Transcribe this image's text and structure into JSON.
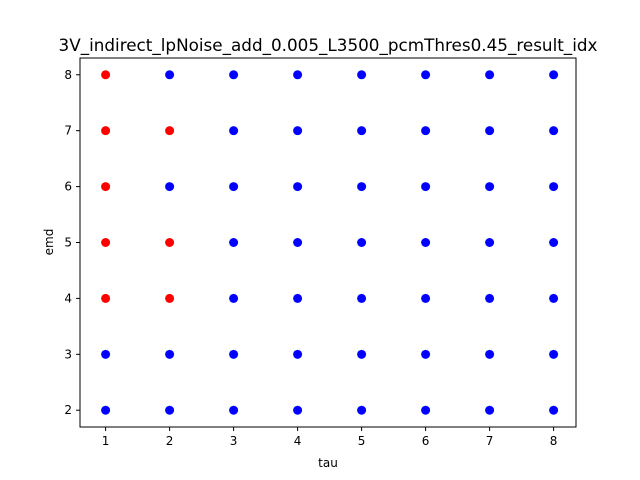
{
  "chart_data": {
    "type": "scatter",
    "title": "3V_indirect_lpNoise_add_0.005_L3500_pcmThres0.45_result_idx",
    "xlabel": "tau",
    "ylabel": "emd",
    "xlim": [
      0.6,
      8.35
    ],
    "ylim": [
      1.7,
      8.3
    ],
    "xticks": [
      1,
      2,
      3,
      4,
      5,
      6,
      7,
      8
    ],
    "yticks": [
      2,
      3,
      4,
      5,
      6,
      7,
      8
    ],
    "grid": false,
    "colors": {
      "red": "#ff0000",
      "blue": "#0000ff"
    },
    "series": [
      {
        "color": "red",
        "points": [
          [
            1,
            4
          ],
          [
            1,
            5
          ],
          [
            1,
            6
          ],
          [
            1,
            7
          ],
          [
            1,
            8
          ],
          [
            2,
            4
          ],
          [
            2,
            5
          ],
          [
            2,
            7
          ]
        ]
      },
      {
        "color": "blue",
        "points": [
          [
            1,
            2
          ],
          [
            1,
            3
          ],
          [
            2,
            2
          ],
          [
            2,
            3
          ],
          [
            2,
            6
          ],
          [
            2,
            8
          ],
          [
            3,
            2
          ],
          [
            3,
            3
          ],
          [
            3,
            4
          ],
          [
            3,
            5
          ],
          [
            3,
            6
          ],
          [
            3,
            7
          ],
          [
            3,
            8
          ],
          [
            4,
            2
          ],
          [
            4,
            3
          ],
          [
            4,
            4
          ],
          [
            4,
            5
          ],
          [
            4,
            6
          ],
          [
            4,
            7
          ],
          [
            4,
            8
          ],
          [
            5,
            2
          ],
          [
            5,
            3
          ],
          [
            5,
            4
          ],
          [
            5,
            5
          ],
          [
            5,
            6
          ],
          [
            5,
            7
          ],
          [
            5,
            8
          ],
          [
            6,
            2
          ],
          [
            6,
            3
          ],
          [
            6,
            4
          ],
          [
            6,
            5
          ],
          [
            6,
            6
          ],
          [
            6,
            7
          ],
          [
            6,
            8
          ],
          [
            7,
            2
          ],
          [
            7,
            3
          ],
          [
            7,
            4
          ],
          [
            7,
            5
          ],
          [
            7,
            6
          ],
          [
            7,
            7
          ],
          [
            7,
            8
          ],
          [
            8,
            2
          ],
          [
            8,
            3
          ],
          [
            8,
            4
          ],
          [
            8,
            5
          ],
          [
            8,
            6
          ],
          [
            8,
            7
          ],
          [
            8,
            8
          ]
        ]
      }
    ]
  }
}
